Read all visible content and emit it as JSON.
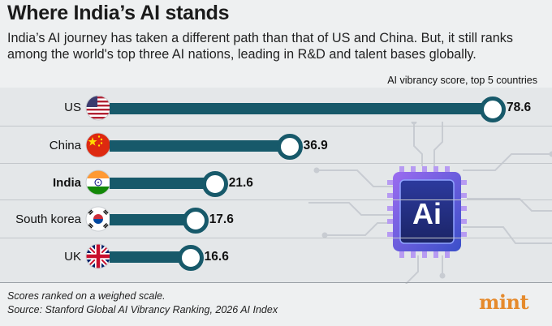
{
  "header": {
    "title": "Where India’s AI stands",
    "subtitle": "India’s AI journey has taken a different path than that of US and China. But, it still ranks among the world's top three AI nations, leading in R&D and talent bases globally."
  },
  "chart_data": {
    "type": "bar",
    "orientation": "horizontal",
    "title": "AI vibrancy score, top 5 countries",
    "categories": [
      "US",
      "China",
      "India",
      "South korea",
      "UK"
    ],
    "values": [
      78.6,
      36.9,
      21.6,
      17.6,
      16.6
    ],
    "value_labels": [
      "78.6",
      "36.9",
      "21.6",
      "17.6",
      "16.6"
    ],
    "highlight": "India",
    "bar_color": "#17596a",
    "xlim": [
      0,
      78.6
    ]
  },
  "illustration": {
    "chip_label": "Ai"
  },
  "footer": {
    "note": "Scores ranked on a weighed scale.",
    "source": "Source: Stanford Global AI Vibrancy Ranking, 2026 AI Index",
    "brand": "mint"
  },
  "colors": {
    "accent": "#17596a",
    "brand": "#e58a2c",
    "chip": "#7b4fd6"
  }
}
